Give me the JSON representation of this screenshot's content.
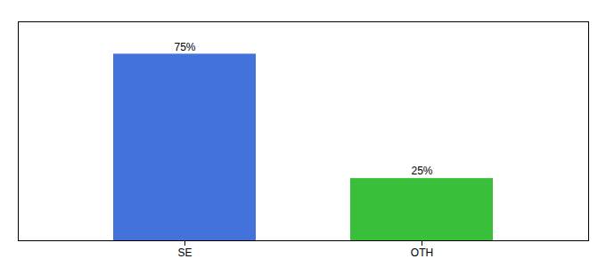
{
  "chart_data": {
    "type": "bar",
    "categories": [
      "SE",
      "OTH"
    ],
    "values": [
      75,
      25
    ],
    "value_labels": [
      "75%",
      "25%"
    ],
    "colors": [
      "#4472db",
      "#3abf3a"
    ],
    "ylim": [
      0,
      88
    ],
    "yticks": [],
    "data_labels": true,
    "tick_labels": "x"
  }
}
